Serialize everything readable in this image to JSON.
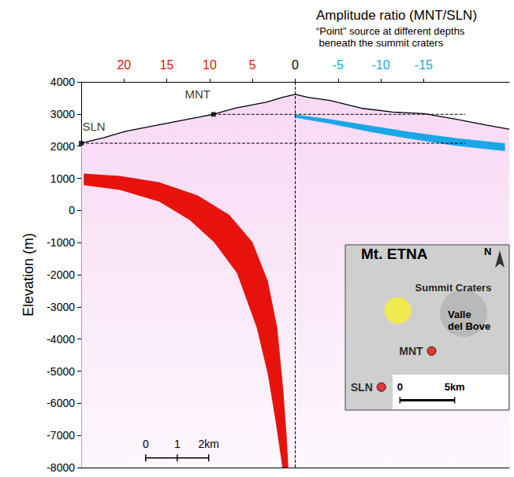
{
  "chart_data": {
    "type": "cross_section",
    "title": "Amplitude ratio (MNT/SLN)",
    "subtitle": "“Point” source at different depths\n beneath the summit craters",
    "y_label": "Elevation (m)",
    "ylim": [
      -8000,
      4000
    ],
    "yticks": [
      -8000,
      -7000,
      -6000,
      -5000,
      -4000,
      -3000,
      -2000,
      -1000,
      0,
      1000,
      2000,
      3000,
      4000
    ],
    "xlim": [
      25,
      -25
    ],
    "xticks": [
      20,
      15,
      10,
      5,
      0,
      -5,
      -10,
      -15
    ],
    "x2lim": [
      -6.8,
      6.8
    ],
    "topography": {
      "color": "#000000",
      "x": [
        -6.8,
        -6.1,
        -5.4,
        -4.4,
        -3.4,
        -2.6,
        -1.9,
        -0.9,
        -0.4,
        0,
        0.4,
        1.1,
        2.1,
        3.1,
        4.1,
        5.1,
        6.1,
        6.8
      ],
      "y": [
        2090,
        2260,
        2460,
        2650,
        2840,
        2990,
        3180,
        3370,
        3520,
        3610,
        3520,
        3420,
        3180,
        3060,
        3010,
        2840,
        2650,
        2530
      ]
    },
    "guides": {
      "line_style": "dashed",
      "color": "#000000",
      "lines": [
        {
          "x": [
            0,
            0
          ],
          "y": [
            -8000,
            4000
          ]
        },
        {
          "x": [
            -2.6,
            5.4
          ],
          "y": [
            2990,
            2990
          ]
        },
        {
          "x": [
            -6.8,
            5.4
          ],
          "y": [
            2090,
            2090
          ]
        }
      ]
    },
    "stations": {
      "marker": "square",
      "color": "#000000",
      "points": [
        {
          "name": "SLN",
          "x": -6.8,
          "y": 2090
        },
        {
          "name": "MNT",
          "x": -2.6,
          "y": 2990
        }
      ]
    },
    "bands": [
      {
        "color": "#e8120c",
        "edge1": {
          "x": [
            24.7,
            20.5,
            15.9,
            11.4,
            7.7,
            5.0,
            3.2,
            2.1,
            1.4,
            1.0,
            0.8
          ],
          "y": [
            1145,
            1073,
            880,
            468,
            -137,
            -983,
            -2193,
            -3644,
            -5580,
            -7031,
            -7999
          ]
        },
        "edge2": {
          "x": [
            24.7,
            20.5,
            15.9,
            12.3,
            9.5,
            6.8,
            4.5,
            3.2,
            2.3,
            1.5
          ],
          "y": [
            783,
            638,
            275,
            -306,
            -983,
            -1951,
            -3644,
            -5095,
            -6547,
            -8000
          ]
        }
      },
      {
        "color": "#1aa7e8",
        "edge1": {
          "x": [
            0,
            -4.1,
            -8.6,
            -13.2,
            -18.6,
            -24.5
          ],
          "y": [
            2984,
            2839,
            2645,
            2452,
            2258,
            2089
          ]
        },
        "edge2": {
          "x": [
            0,
            -4.1,
            -8.6,
            -13.2,
            -18.6,
            -24.5
          ],
          "y": [
            2887,
            2694,
            2452,
            2234,
            2016,
            1847
          ]
        }
      }
    ],
    "scale_bar": {
      "x": [
        -4.75,
        -3.75,
        -2.75
      ],
      "y": -7700,
      "labels": [
        "0",
        "1",
        "2km"
      ]
    },
    "inset": {
      "title": "Mt. ETNA",
      "north": "N",
      "region_label": "Valle del Bove",
      "xlim": [
        -4.8,
        10.2
      ],
      "ylim": [
        -9.1,
        6.0
      ],
      "tick_labels": false,
      "craters": {
        "name": "Summit Craters",
        "x": 0,
        "y": 0,
        "color": "#f4ef3c"
      },
      "stations": [
        {
          "name": "MNT",
          "x": 3.1,
          "y": -3.7,
          "color": "#e8120c"
        },
        {
          "name": "SLN",
          "x": -1.5,
          "y": -7.0,
          "color": "#e8120c"
        }
      ],
      "scale_bar": {
        "x": [
          0.2,
          5.2
        ],
        "y": -8.2,
        "labels": [
          "0",
          "5km"
        ]
      }
    }
  }
}
